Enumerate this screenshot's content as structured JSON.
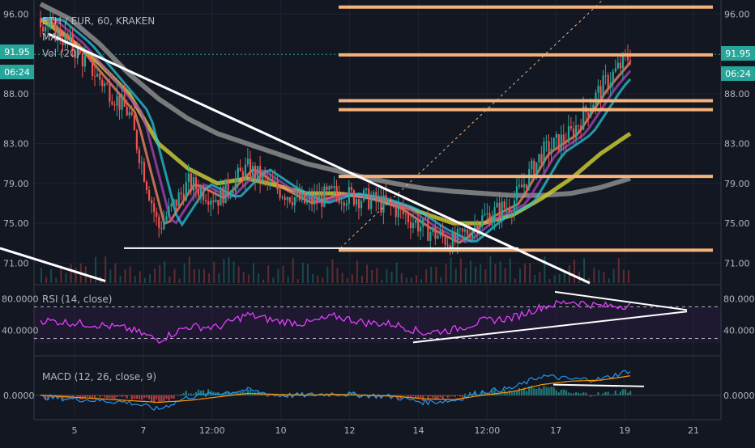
{
  "header": {
    "symbol_line": "ETH / EUR, 60, KRAKEN",
    "ma_label": "MAs",
    "vol_label": "Vol (20)",
    "rsi_label": "RSI (14, close)",
    "macd_label": "MACD (12, 26, close, 9)"
  },
  "badges": {
    "last_price": "91.95",
    "countdown": "06:24",
    "price_color": "#26a69a",
    "countdown_color": "#26a69a"
  },
  "colors": {
    "background": "#131722",
    "bull_candle": "#26a69a",
    "bear_candle": "#ef5350",
    "support_lines": "#f5b27a",
    "trend_lines": "#ffffff",
    "rsi_line": "#e040fb",
    "macd_line": "#2196f3",
    "signal_line": "#ff9800",
    "ma_200": "#8c8c8c",
    "ma_100": "#c8c832"
  },
  "chart_data": [
    {
      "type": "line",
      "panel": "price",
      "ylim": [
        69,
        97
      ],
      "y_ticks": [
        "96.00",
        "88.00",
        "83.00",
        "79.00",
        "75.00",
        "71.00"
      ],
      "y_tick_values": [
        96,
        88,
        83,
        79,
        75,
        71
      ],
      "x_ticks": [
        "5",
        "7",
        "12:00",
        "10",
        "12",
        "14",
        "12:00",
        "17",
        "19",
        "21"
      ],
      "x": [
        0,
        5,
        10,
        15,
        20,
        25,
        30,
        35,
        40,
        45,
        50,
        55,
        60,
        65,
        70,
        75,
        80,
        85,
        90,
        95,
        100
      ],
      "close": [
        95.5,
        93.0,
        89.5,
        86.0,
        74.5,
        79.0,
        77.5,
        80.5,
        78.5,
        77.0,
        78.0,
        77.5,
        76.5,
        74.5,
        73.0,
        75.5,
        77.0,
        82.0,
        84.0,
        88.5,
        91.95
      ],
      "series": [
        {
          "values": [
            97.0,
            95.5,
            93.0,
            90.0,
            87.5,
            85.5,
            84.0,
            83.0,
            82.0,
            81.0,
            80.3,
            79.6,
            79.0,
            78.5,
            78.2,
            78.0,
            77.8,
            77.8,
            78.0,
            78.6,
            79.5
          ]
        },
        {
          "values": [
            95.5,
            93.5,
            91.0,
            88.0,
            83.0,
            80.5,
            79.0,
            79.5,
            78.8,
            78.0,
            78.0,
            77.7,
            77.0,
            76.0,
            75.0,
            75.0,
            75.8,
            77.5,
            79.5,
            82.0,
            84.0
          ]
        }
      ],
      "support_levels": [
        96.7,
        91.9,
        87.3,
        86.4,
        79.7,
        72.3
      ],
      "white_level": 72.5
    },
    {
      "type": "line",
      "panel": "rsi",
      "ylim": [
        10,
        95
      ],
      "y_ticks": [
        "80.0000",
        "40.0000"
      ],
      "y_tick_values": [
        80,
        40
      ],
      "bands": [
        70,
        30
      ],
      "values": [
        53,
        50,
        47,
        42,
        28,
        45,
        44,
        60,
        52,
        49,
        58,
        50,
        48,
        37,
        41,
        52,
        56,
        70,
        77,
        71,
        72
      ]
    },
    {
      "type": "line",
      "panel": "macd",
      "ylim": [
        -1.2,
        2.0
      ],
      "y_ticks": [
        "0.0000"
      ],
      "y_tick_values": [
        0
      ],
      "macd": [
        -0.1,
        -0.2,
        -0.3,
        -0.4,
        -0.8,
        -0.1,
        0.1,
        0.3,
        0.0,
        0.0,
        0.1,
        0.0,
        -0.1,
        -0.4,
        -0.3,
        0.2,
        0.4,
        1.1,
        0.9,
        0.9,
        1.4
      ],
      "signal": [
        0.0,
        -0.1,
        -0.2,
        -0.3,
        -0.4,
        -0.3,
        -0.1,
        0.1,
        0.05,
        0.0,
        0.05,
        0.0,
        -0.05,
        -0.2,
        -0.25,
        0.0,
        0.2,
        0.6,
        0.8,
        0.85,
        1.1
      ]
    }
  ]
}
